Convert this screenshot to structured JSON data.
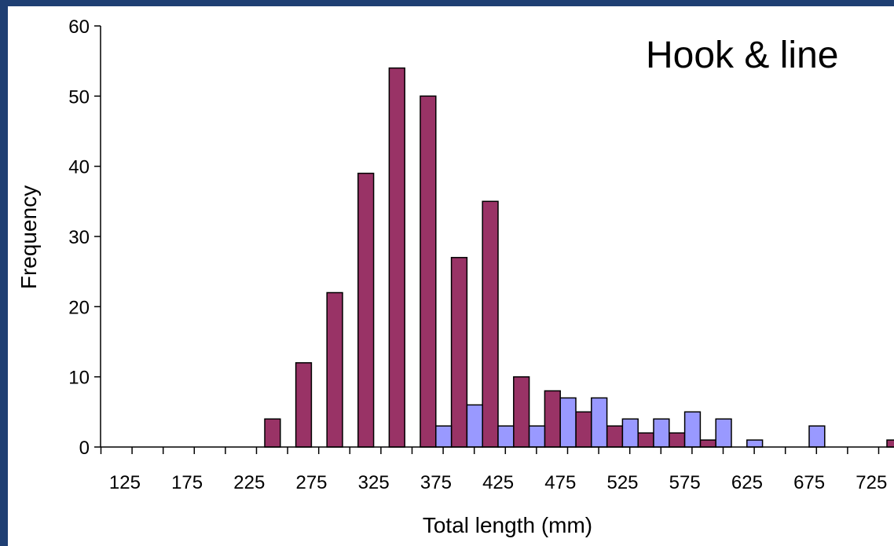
{
  "chart_data": {
    "type": "bar",
    "title": "Hook & line",
    "xlabel": "Total length (mm)",
    "ylabel": "Frequency",
    "ylim": [
      0,
      60
    ],
    "yticks": [
      0,
      10,
      20,
      30,
      40,
      50,
      60
    ],
    "categories": [
      125,
      150,
      175,
      200,
      225,
      250,
      275,
      300,
      325,
      350,
      375,
      400,
      425,
      450,
      475,
      500,
      525,
      550,
      575,
      600,
      625,
      650,
      675,
      700,
      725,
      750
    ],
    "xtick_labels": [
      "125",
      "175",
      "225",
      "275",
      "325",
      "375",
      "425",
      "475",
      "525",
      "575",
      "625",
      "675",
      "725"
    ],
    "series": [
      {
        "color": "#993366",
        "values": [
          0,
          0,
          0,
          0,
          0,
          4,
          12,
          22,
          39,
          54,
          50,
          27,
          35,
          10,
          8,
          5,
          3,
          2,
          2,
          1,
          0,
          0,
          0,
          0,
          0,
          1
        ]
      },
      {
        "color": "#9999ff",
        "values": [
          0,
          0,
          0,
          0,
          0,
          0,
          0,
          0,
          0,
          0,
          3,
          6,
          3,
          3,
          7,
          7,
          4,
          4,
          5,
          4,
          1,
          0,
          3,
          0,
          0,
          0
        ]
      }
    ],
    "grid": false,
    "legend": "none"
  }
}
